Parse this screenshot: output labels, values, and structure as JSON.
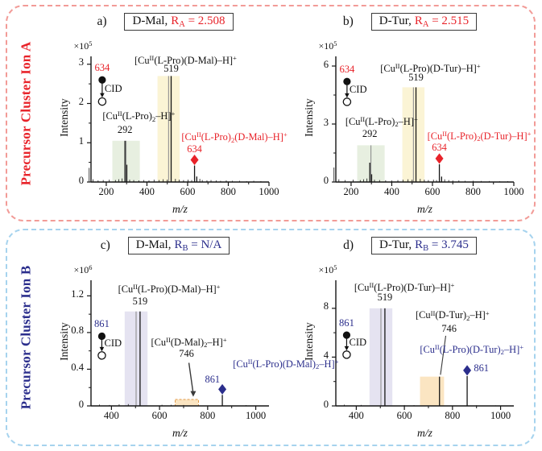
{
  "sections": [
    {
      "side_label": "Precursor Cluster Ion A",
      "accent": "#e8232a",
      "border_color": "#f29b97"
    },
    {
      "side_label": "Precursor Cluster Ion B",
      "accent": "#2b2e8c",
      "border_color": "#a6d3ee"
    }
  ],
  "colors": {
    "red_accent": "#e8232a",
    "blue_accent": "#2b2e8c",
    "band_green": "#e7efe0",
    "band_yellow": "#fbf4d5",
    "band_lavender": "#e5e3f1",
    "band_orange": "#fbe5c2",
    "orange_box_border": "#e09b4a",
    "peak_line": "#151515",
    "band_center_line": "#8f8f8f",
    "axis": "#151515"
  },
  "chart_data": [
    {
      "type": "bar",
      "variant": "mass-spectrum",
      "letter": "a)",
      "title_plain": "D-Mal,",
      "title_accent": "R~A~ = 2.508",
      "accent": "#e8232a",
      "exponent": "×10^5^",
      "ylabel": "Intensity",
      "xlabel": "m/z",
      "x_min": 125,
      "x_max": 1000,
      "x_ticks": [
        200,
        400,
        600,
        800,
        1000
      ],
      "x_minor": [
        300,
        500,
        700,
        900
      ],
      "y_axis_max": 3.2,
      "y_ticks": [
        0,
        1,
        2,
        3
      ],
      "y_minor": [
        0.5,
        1.5,
        2.5
      ],
      "bands": [
        {
          "x1": 230,
          "x2": 365,
          "h": 1.05,
          "fill": "#e7efe0",
          "line": true
        },
        {
          "x1": 452,
          "x2": 561,
          "h": 2.7,
          "fill": "#fbf4d5",
          "line": true
        }
      ],
      "boxes": [],
      "peaks": [
        {
          "mz": 292,
          "h": 1.05
        },
        {
          "mz": 301,
          "h": 0.44
        },
        {
          "mz": 519,
          "h": 2.7
        },
        {
          "mz": 634,
          "h": 0.42,
          "diamond": true
        },
        {
          "mz": 645,
          "h": 0.14
        }
      ],
      "noise": [
        [
          116,
          0.36
        ],
        [
          135,
          0.07
        ],
        [
          160,
          0.04
        ],
        [
          185,
          0.05
        ],
        [
          215,
          0.06
        ],
        [
          245,
          0.05
        ],
        [
          262,
          0.07
        ],
        [
          278,
          0.09
        ],
        [
          315,
          0.06
        ],
        [
          335,
          0.05
        ],
        [
          360,
          0.04
        ],
        [
          385,
          0.05
        ],
        [
          410,
          0.04
        ],
        [
          435,
          0.06
        ],
        [
          460,
          0.05
        ],
        [
          480,
          0.07
        ],
        [
          500,
          0.06
        ],
        [
          540,
          0.08
        ],
        [
          558,
          0.06
        ],
        [
          580,
          0.05
        ],
        [
          602,
          0.06
        ],
        [
          620,
          0.05
        ],
        [
          660,
          0.08
        ],
        [
          672,
          0.05
        ],
        [
          695,
          0.04
        ],
        [
          715,
          0.05
        ],
        [
          740,
          0.04
        ],
        [
          762,
          0.03
        ],
        [
          790,
          0.04
        ],
        [
          820,
          0.03
        ],
        [
          855,
          0.03
        ],
        [
          890,
          0.02
        ],
        [
          925,
          0.03
        ],
        [
          960,
          0.02
        ]
      ],
      "annotations": [
        {
          "text": "[Cu^II^(L-Pro)~2~–H]^+^",
          "x": 360,
          "y": 1.64
        },
        {
          "text": "292",
          "x": 292,
          "y": 1.3
        },
        {
          "text": "[Cu^II^(L-Pro)(D-Mal)–H]^+^",
          "x": 590,
          "y": 3.06
        },
        {
          "text": "519",
          "x": 519,
          "y": 2.86
        },
        {
          "text": "[Cu^II^(L-Pro)~2~(D-Mal)–H]^+^",
          "x": 830,
          "y": 1.1,
          "color": "accent"
        },
        {
          "text": "634",
          "x": 634,
          "y": 0.8,
          "color": "accent"
        }
      ],
      "arrows": [],
      "lines": [],
      "cid": {
        "x": 180,
        "top": 2.6,
        "bottom": 2.05,
        "precursor_label": "634",
        "cid_label": "CID"
      }
    },
    {
      "type": "bar",
      "variant": "mass-spectrum",
      "letter": "b)",
      "title_plain": "D-Tur,",
      "title_accent": "R~A~ = 2.515",
      "accent": "#e8232a",
      "exponent": "×10^5^",
      "ylabel": "Intensity",
      "xlabel": "m/z",
      "x_min": 125,
      "x_max": 1000,
      "x_ticks": [
        200,
        400,
        600,
        800,
        1000
      ],
      "x_minor": [
        300,
        500,
        700,
        900
      ],
      "y_axis_max": 6.5,
      "y_ticks": [
        0,
        3,
        6
      ],
      "y_minor": [
        1.5,
        4.5
      ],
      "bands": [
        {
          "x1": 230,
          "x2": 365,
          "h": 1.9,
          "fill": "#e7efe0",
          "line": true
        },
        {
          "x1": 452,
          "x2": 561,
          "h": 4.9,
          "fill": "#fbf4d5",
          "line": true
        }
      ],
      "boxes": [],
      "peaks": [
        {
          "mz": 292,
          "h": 1.0
        },
        {
          "mz": 301,
          "h": 0.4
        },
        {
          "mz": 519,
          "h": 4.9
        },
        {
          "mz": 634,
          "h": 0.92,
          "diamond": true
        },
        {
          "mz": 645,
          "h": 0.28
        }
      ],
      "noise": [
        [
          116,
          0.75
        ],
        [
          140,
          0.14
        ],
        [
          170,
          0.1
        ],
        [
          210,
          0.12
        ],
        [
          245,
          0.1
        ],
        [
          262,
          0.14
        ],
        [
          278,
          0.18
        ],
        [
          315,
          0.12
        ],
        [
          340,
          0.1
        ],
        [
          370,
          0.09
        ],
        [
          400,
          0.08
        ],
        [
          430,
          0.1
        ],
        [
          455,
          0.12
        ],
        [
          480,
          0.14
        ],
        [
          500,
          0.12
        ],
        [
          540,
          0.16
        ],
        [
          560,
          0.12
        ],
        [
          580,
          0.1
        ],
        [
          605,
          0.12
        ],
        [
          620,
          0.1
        ],
        [
          660,
          0.14
        ],
        [
          680,
          0.1
        ],
        [
          700,
          0.08
        ],
        [
          730,
          0.08
        ],
        [
          760,
          0.06
        ],
        [
          800,
          0.06
        ],
        [
          840,
          0.05
        ],
        [
          880,
          0.05
        ],
        [
          930,
          0.04
        ],
        [
          970,
          0.04
        ]
      ],
      "annotations": [
        {
          "text": "[Cu^II^(L-Pro)~2~–H]^+^",
          "x": 350,
          "y": 3.05
        },
        {
          "text": "292",
          "x": 292,
          "y": 2.4
        },
        {
          "text": "[Cu^II^(L-Pro)(D-Tur)–H]^+^",
          "x": 590,
          "y": 5.78
        },
        {
          "text": "519",
          "x": 519,
          "y": 5.35
        },
        {
          "text": "[Cu^II^(L-Pro)~2~(D-Tur)–H]^+^",
          "x": 830,
          "y": 2.3,
          "color": "accent"
        },
        {
          "text": "634",
          "x": 634,
          "y": 1.72,
          "color": "accent"
        }
      ],
      "arrows": [],
      "lines": [],
      "cid": {
        "x": 180,
        "top": 5.2,
        "bottom": 4.15,
        "precursor_label": "634",
        "cid_label": "CID"
      }
    },
    {
      "type": "bar",
      "variant": "mass-spectrum",
      "letter": "c)",
      "title_plain": "D-Mal,",
      "title_accent": "R~B~ = N/A",
      "accent": "#2b2e8c",
      "exponent": "×10^6^",
      "ylabel": "Intensity",
      "xlabel": "m/z",
      "x_min": 315,
      "x_max": 1055,
      "x_ticks": [
        400,
        600,
        800,
        1000
      ],
      "x_minor": [
        500,
        700,
        900
      ],
      "y_axis_max": 1.37,
      "y_ticks": [
        0,
        0.4,
        0.8,
        1.2
      ],
      "y_minor": [
        0.2,
        0.6,
        1.0
      ],
      "bands": [
        {
          "x1": 455,
          "x2": 550,
          "h": 1.03,
          "fill": "#e5e3f1",
          "line": true
        }
      ],
      "boxes": [
        {
          "x1": 665,
          "x2": 762,
          "h": 0.07,
          "fill": "#fbe5c2",
          "stroke": "#e09b4a"
        }
      ],
      "peaks": [
        {
          "mz": 519,
          "h": 1.03
        },
        {
          "mz": 861,
          "h": 0.12,
          "diamond": true
        }
      ],
      "noise": [
        [
          350,
          0.014
        ],
        [
          392,
          0.01
        ],
        [
          432,
          0.016
        ],
        [
          470,
          0.02
        ],
        [
          610,
          0.012
        ],
        [
          648,
          0.012
        ],
        [
          700,
          0.01
        ],
        [
          960,
          0.008
        ]
      ],
      "annotations": [
        {
          "text": "[Cu^II^(L-Pro)(D-Mal)–H]^+^",
          "x": 640,
          "y": 1.26
        },
        {
          "text": "519",
          "x": 519,
          "y": 1.12
        },
        {
          "text": "[Cu^II^(D-Mal)~2~–H]^+^",
          "x": 722,
          "y": 0.68
        },
        {
          "text": "746",
          "x": 712,
          "y": 0.55
        },
        {
          "text": "[Cu^II^(L-Pro)(D-Mal)~2~–H]^+^",
          "x": 905,
          "y": 0.44,
          "color": "accent",
          "anchor": "start"
        },
        {
          "text": "861",
          "x": 820,
          "y": 0.27,
          "color": "accent"
        }
      ],
      "arrows": [
        {
          "x1": 722,
          "y1": 0.47,
          "x2": 740,
          "y2": 0.1
        }
      ],
      "lines": [],
      "cid": {
        "x": 360,
        "top": 0.76,
        "bottom": 0.55,
        "precursor_label": "861",
        "cid_label": "CID"
      }
    },
    {
      "type": "bar",
      "variant": "mass-spectrum",
      "letter": "d)",
      "title_plain": "D-Tur,",
      "title_accent": "R~B~ = 3.745",
      "accent": "#2b2e8c",
      "exponent": "×10^5^",
      "ylabel": "Intensity",
      "xlabel": "m/z",
      "x_min": 315,
      "x_max": 1055,
      "x_ticks": [
        400,
        600,
        800,
        1000
      ],
      "x_minor": [
        500,
        700,
        900
      ],
      "y_axis_max": 10.3,
      "y_ticks": [
        0,
        4,
        8
      ],
      "y_minor": [
        2,
        6
      ],
      "bands": [
        {
          "x1": 455,
          "x2": 550,
          "h": 8.0,
          "fill": "#e5e3f1",
          "line": true
        },
        {
          "x1": 665,
          "x2": 765,
          "h": 2.4,
          "fill": "#fbe5c2",
          "line": false
        }
      ],
      "boxes": [],
      "peaks": [
        {
          "mz": 519,
          "h": 8.0
        },
        {
          "mz": 746,
          "h": 2.4
        },
        {
          "mz": 861,
          "h": 2.45,
          "diamond": true
        }
      ],
      "noise": [
        [
          350,
          0.1
        ],
        [
          420,
          0.08
        ],
        [
          600,
          0.07
        ],
        [
          640,
          0.06
        ],
        [
          900,
          0.05
        ],
        [
          980,
          0.04
        ]
      ],
      "annotations": [
        {
          "text": "[Cu^II^(L-Pro)(D-Tur)–H]^+^",
          "x": 600,
          "y": 9.55
        },
        {
          "text": "519",
          "x": 519,
          "y": 8.75
        },
        {
          "text": "[Cu^II^(D-Tur)~2~–H]^+^",
          "x": 800,
          "y": 7.3
        },
        {
          "text": "746",
          "x": 786,
          "y": 6.2
        },
        {
          "text": "[Cu^II^(L-Pro)(D-Tur)~2~–H]^+^",
          "x": 880,
          "y": 4.5,
          "color": "accent"
        },
        {
          "text": "861",
          "x": 920,
          "y": 2.95,
          "color": "accent"
        }
      ],
      "arrows": [],
      "lines": [
        {
          "x1": 772,
          "y1": 5.75,
          "x2": 750,
          "y2": 2.55
        }
      ],
      "cid": {
        "x": 360,
        "top": 5.8,
        "bottom": 4.2,
        "precursor_label": "861",
        "cid_label": "CID"
      }
    }
  ]
}
